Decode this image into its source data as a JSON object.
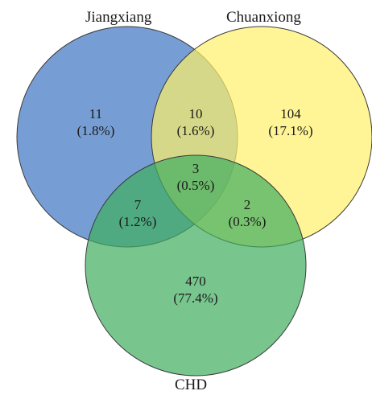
{
  "sets": [
    {
      "name": "Jiangxiang",
      "color": "#4a7ec6"
    },
    {
      "name": "Chuanxiong",
      "color": "#fff16a"
    },
    {
      "name": "CHD",
      "color": "#3fae5e"
    }
  ],
  "regions": {
    "only_jiangxiang": {
      "count": "11",
      "percent": "(1.8%)"
    },
    "jiangxiang_chuanxiong": {
      "count": "10",
      "percent": "(1.6%)"
    },
    "only_chuanxiong": {
      "count": "104",
      "percent": "(17.1%)"
    },
    "all_three": {
      "count": "3",
      "percent": "(0.5%)"
    },
    "jiangxiang_chd": {
      "count": "7",
      "percent": "(1.2%)"
    },
    "chuanxiong_chd": {
      "count": "2",
      "percent": "(0.3%)"
    },
    "only_chd": {
      "count": "470",
      "percent": "(77.4%)"
    }
  }
}
